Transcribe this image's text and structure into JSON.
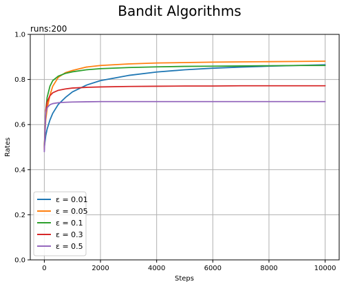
{
  "figure": {
    "suptitle": "Bandit Algorithms"
  },
  "chart_data": {
    "type": "line",
    "title": "runs:200",
    "xlabel": "Steps",
    "ylabel": "Rates",
    "xlim": [
      -500,
      10500
    ],
    "ylim": [
      0.0,
      1.0
    ],
    "xticks": [
      0,
      2000,
      4000,
      6000,
      8000,
      10000
    ],
    "xtick_labels": [
      "0",
      "2000",
      "4000",
      "6000",
      "8000",
      "10000"
    ],
    "yticks": [
      0.0,
      0.2,
      0.4,
      0.6,
      0.8,
      1.0
    ],
    "ytick_labels": [
      "0.0",
      "0.2",
      "0.4",
      "0.6",
      "0.8",
      "1.0"
    ],
    "grid": true,
    "legend_position": "lower-left",
    "series": [
      {
        "name": "ε = 0.01",
        "color": "#1f77b4",
        "x": [
          0,
          50,
          100,
          200,
          300,
          500,
          750,
          1000,
          1500,
          2000,
          3000,
          4000,
          5000,
          6000,
          7000,
          8000,
          9000,
          10000
        ],
        "y": [
          0.5,
          0.55,
          0.58,
          0.62,
          0.65,
          0.69,
          0.72,
          0.745,
          0.775,
          0.795,
          0.818,
          0.833,
          0.843,
          0.85,
          0.855,
          0.859,
          0.862,
          0.865
        ]
      },
      {
        "name": "ε = 0.05",
        "color": "#ff7f0e",
        "x": [
          0,
          50,
          100,
          200,
          300,
          500,
          750,
          1000,
          1500,
          2000,
          3000,
          4000,
          5000,
          6000,
          7000,
          8000,
          9000,
          10000
        ],
        "y": [
          0.5,
          0.62,
          0.67,
          0.73,
          0.77,
          0.81,
          0.83,
          0.84,
          0.855,
          0.862,
          0.869,
          0.873,
          0.875,
          0.877,
          0.878,
          0.879,
          0.88,
          0.881
        ]
      },
      {
        "name": "ε = 0.1",
        "color": "#2ca02c",
        "x": [
          0,
          50,
          100,
          200,
          300,
          500,
          750,
          1000,
          1500,
          2000,
          3000,
          4000,
          5000,
          6000,
          7000,
          8000,
          9000,
          10000
        ],
        "y": [
          0.5,
          0.66,
          0.72,
          0.77,
          0.795,
          0.815,
          0.827,
          0.834,
          0.843,
          0.848,
          0.853,
          0.856,
          0.858,
          0.859,
          0.86,
          0.861,
          0.862,
          0.862
        ]
      },
      {
        "name": "ε = 0.3",
        "color": "#d62728",
        "x": [
          0,
          50,
          100,
          200,
          300,
          500,
          750,
          1000,
          1500,
          2000,
          3000,
          4000,
          5000,
          6000,
          7000,
          8000,
          9000,
          10000
        ],
        "y": [
          0.49,
          0.66,
          0.7,
          0.728,
          0.741,
          0.752,
          0.758,
          0.762,
          0.765,
          0.767,
          0.769,
          0.77,
          0.771,
          0.771,
          0.772,
          0.772,
          0.772,
          0.772
        ]
      },
      {
        "name": "ε = 0.5",
        "color": "#9467bd",
        "x": [
          0,
          50,
          100,
          200,
          300,
          500,
          750,
          1000,
          1500,
          2000,
          3000,
          4000,
          5000,
          6000,
          7000,
          8000,
          9000,
          10000
        ],
        "y": [
          0.48,
          0.65,
          0.675,
          0.688,
          0.693,
          0.697,
          0.699,
          0.7,
          0.701,
          0.702,
          0.702,
          0.702,
          0.702,
          0.702,
          0.702,
          0.702,
          0.702,
          0.702
        ]
      }
    ]
  }
}
